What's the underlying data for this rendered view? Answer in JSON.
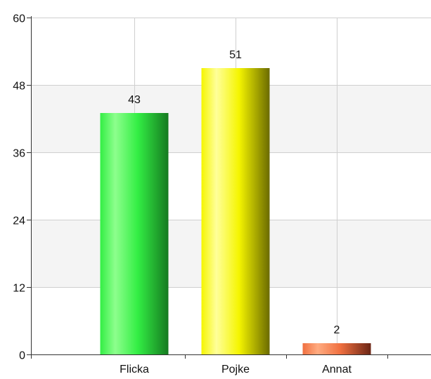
{
  "chart_data": {
    "type": "bar",
    "categories": [
      "Flicka",
      "Pojke",
      "Annat"
    ],
    "values": [
      43,
      51,
      2
    ],
    "yticks": [
      0,
      12,
      24,
      36,
      48,
      60
    ],
    "ylim": [
      0,
      60
    ],
    "grid": true,
    "colors": [
      {
        "light": "#8dff8d",
        "base": "#33ee44",
        "dark": "#157a20"
      },
      {
        "light": "#ffff9a",
        "base": "#f5f500",
        "dark": "#6b6b00"
      },
      {
        "light": "#ffab80",
        "base": "#f07040",
        "dark": "#6b2515"
      }
    ]
  }
}
